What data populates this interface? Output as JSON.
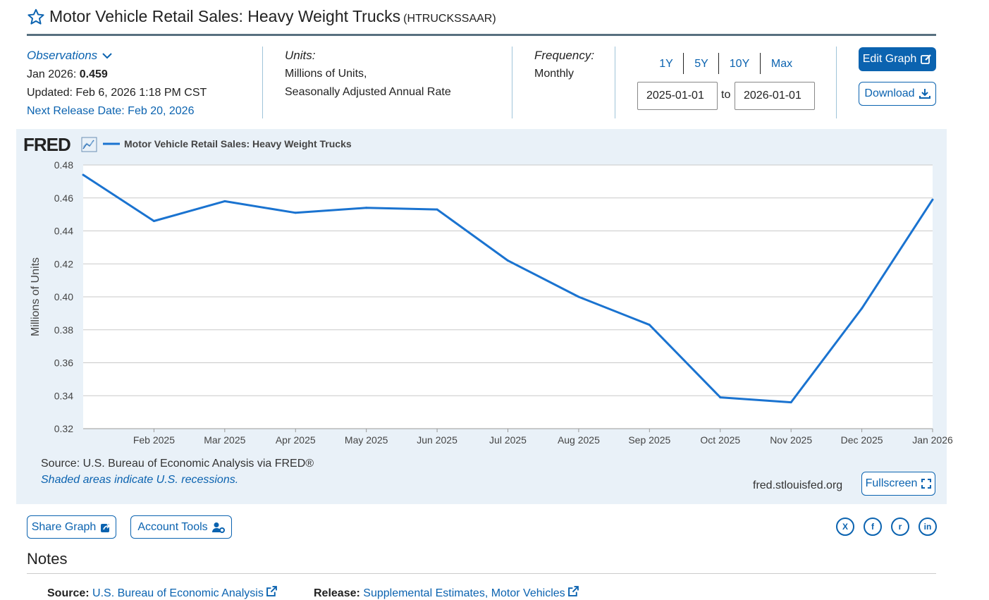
{
  "header": {
    "title": "Motor Vehicle Retail Sales: Heavy Weight Trucks",
    "series_id": "(HTRUCKSSAAR)"
  },
  "meta": {
    "observations_label": "Observations",
    "latest_date": "Jan 2026:",
    "latest_value": "0.459",
    "updated": "Updated: Feb 6, 2026 1:18 PM CST",
    "next_release": "Next Release Date: Feb 20, 2026",
    "units_label": "Units:",
    "units_line1": "Millions of Units,",
    "units_line2": "Seasonally Adjusted Annual Rate",
    "frequency_label": "Frequency:",
    "frequency_value": "Monthly"
  },
  "range": {
    "buttons": [
      "1Y",
      "5Y",
      "10Y",
      "Max"
    ],
    "start_date": "2025-01-01",
    "to_label": "to",
    "end_date": "2026-01-01"
  },
  "actions": {
    "edit_graph": "Edit Graph",
    "download": "Download",
    "fullscreen": "Fullscreen",
    "share_graph": "Share Graph",
    "account_tools": "Account Tools"
  },
  "graph": {
    "logo_text": "FRED",
    "source_text": "Source: U.S. Bureau of Economic Analysis via FRED®",
    "shaded_text": "Shaded areas indicate U.S. recessions.",
    "site_url": "fred.stlouisfed.org",
    "line_color": "#1a73d0"
  },
  "chart_data": {
    "type": "line",
    "legend": [
      "Motor Vehicle Retail Sales: Heavy Weight Trucks"
    ],
    "ylabel": "Millions of Units",
    "ylim": [
      0.32,
      0.48
    ],
    "y_ticks": [
      "0.48",
      "0.46",
      "0.44",
      "0.42",
      "0.40",
      "0.38",
      "0.36",
      "0.34",
      "0.32"
    ],
    "x": [
      "Jan 2025",
      "Feb 2025",
      "Mar 2025",
      "Apr 2025",
      "May 2025",
      "Jun 2025",
      "Jul 2025",
      "Aug 2025",
      "Sep 2025",
      "Oct 2025",
      "Nov 2025",
      "Dec 2025",
      "Jan 2026"
    ],
    "x_tick_labels": [
      "Feb 2025",
      "Mar 2025",
      "Apr 2025",
      "May 2025",
      "Jun 2025",
      "Jul 2025",
      "Aug 2025",
      "Sep 2025",
      "Oct 2025",
      "Nov 2025",
      "Dec 2025",
      "Jan 2026"
    ],
    "series": [
      {
        "name": "Motor Vehicle Retail Sales: Heavy Weight Trucks",
        "values": [
          0.474,
          0.446,
          0.458,
          0.451,
          0.454,
          0.453,
          0.422,
          0.4,
          0.383,
          0.339,
          0.336,
          0.393,
          0.459
        ]
      }
    ],
    "grid": true,
    "legend_position": "top-left"
  },
  "notes": {
    "title": "Notes",
    "source_label": "Source:",
    "source_link": "U.S. Bureau of Economic Analysis",
    "release_label": "Release:",
    "release_link": "Supplemental Estimates, Motor Vehicles"
  },
  "social": {
    "x_icon": "X",
    "facebook_icon": "f",
    "reddit_icon": "r",
    "linkedin_icon": "in"
  }
}
